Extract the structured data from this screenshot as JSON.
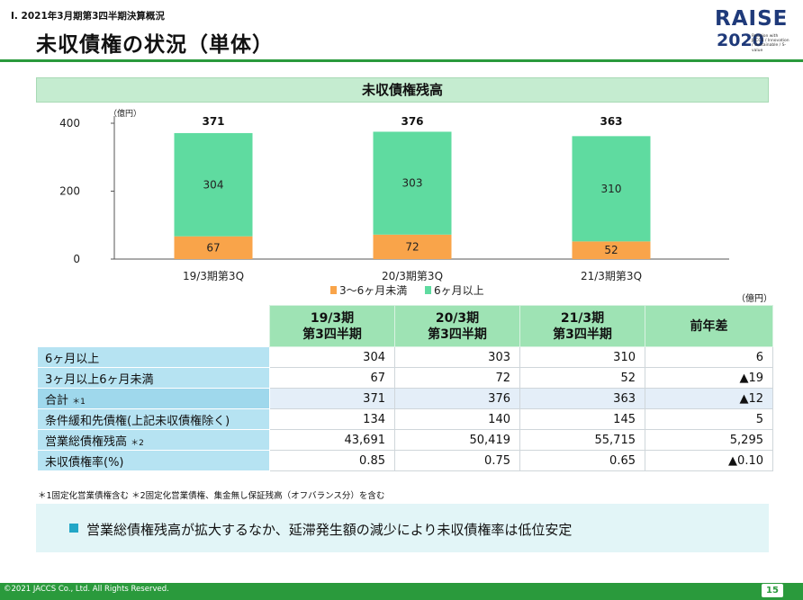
{
  "header": {
    "subtitle": "Ⅰ. 2021年3月期第3四半期決算概況",
    "title": "未収債権の状況（単体）"
  },
  "logo": {
    "line1": "RAISE",
    "line2": "2020",
    "tagline": "Relation with JACCS / Innovation / Sustainable / S-value"
  },
  "section_title": "未収債権残高",
  "chart_data": {
    "type": "bar",
    "stacked": true,
    "unit_label": "（億円）",
    "categories": [
      "19/3期第3Q",
      "20/3期第3Q",
      "21/3期第3Q"
    ],
    "series": [
      {
        "name": "3～6ヶ月未満",
        "values": [
          67,
          72,
          52
        ],
        "color": "#f9a44a"
      },
      {
        "name": "6ヶ月以上",
        "values": [
          304,
          303,
          310
        ],
        "color": "#5fdba0"
      }
    ],
    "totals": [
      371,
      376,
      363
    ],
    "ylim": [
      0,
      400
    ],
    "yticks": [
      0,
      200,
      400
    ],
    "legend_position": "bottom"
  },
  "table": {
    "unit_label": "（億円）",
    "headers": [
      {
        "line1": "19/3期",
        "line2": "第3四半期"
      },
      {
        "line1": "20/3期",
        "line2": "第3四半期"
      },
      {
        "line1": "21/3期",
        "line2": "第3四半期"
      },
      {
        "line1": "前年差",
        "line2": ""
      }
    ],
    "rows": [
      {
        "label": "6ヶ月以上",
        "note": "",
        "values": [
          "304",
          "303",
          "310",
          "6"
        ]
      },
      {
        "label": "3ヶ月以上6ヶ月未満",
        "note": "",
        "values": [
          "67",
          "72",
          "52",
          "▲19"
        ]
      },
      {
        "label": "合計",
        "note": "＊1",
        "values": [
          "371",
          "376",
          "363",
          "▲12"
        ]
      },
      {
        "label": "条件緩和先債権(上記未収債権除く)",
        "note": "",
        "values": [
          "134",
          "140",
          "145",
          "5"
        ]
      },
      {
        "label": "営業総債権残高",
        "note": "＊2",
        "values": [
          "43,691",
          "50,419",
          "55,715",
          "5,295"
        ]
      },
      {
        "label": "未収債権率(%)",
        "note": "",
        "values": [
          "0.85",
          "0.75",
          "0.65",
          "▲0.10"
        ]
      }
    ]
  },
  "footnote": "＊1固定化営業債権含む ＊2固定化営業債権、集金無し保証残高（オフバランス分）を含む",
  "summary": "営業総債権残高が拡大するなか、延滞発生額の減少により未収債権率は低位安定",
  "footer": {
    "copyright": "©2021 JACCS Co., Ltd. All Rights Reserved.",
    "page": "15"
  }
}
